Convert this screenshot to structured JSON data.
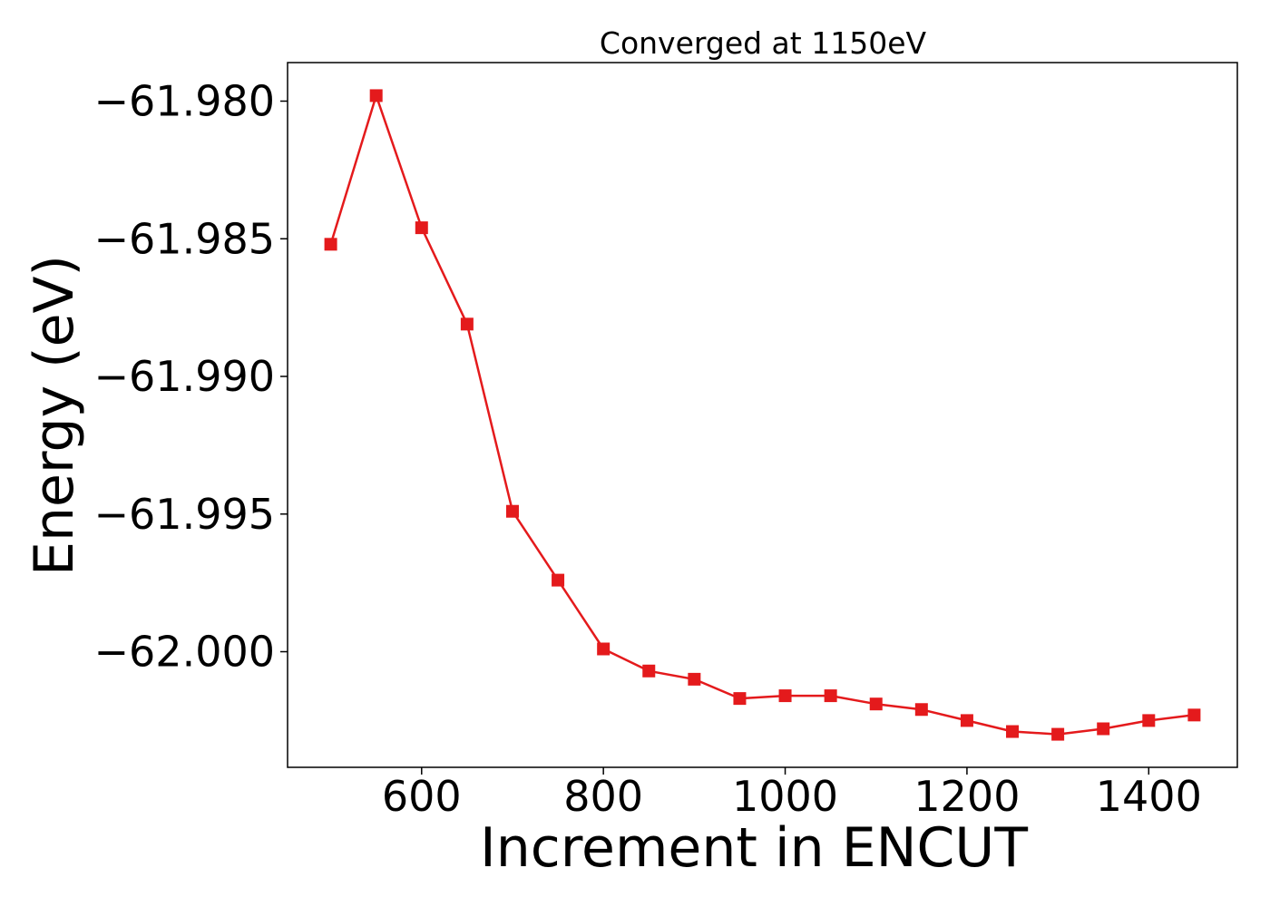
{
  "chart_data": {
    "type": "line",
    "title": "Converged at 1150eV",
    "xlabel": "Increment in ENCUT",
    "ylabel": "Energy (eV)",
    "xlim": [
      452.5,
      1497.5
    ],
    "ylim": [
      -62.0042,
      -61.9786
    ],
    "xticks": [
      600,
      800,
      1000,
      1200,
      1400
    ],
    "xtick_labels": [
      "600",
      "800",
      "1000",
      "1200",
      "1400"
    ],
    "yticks": [
      -61.98,
      -61.985,
      -61.99,
      -61.995,
      -62.0
    ],
    "ytick_labels": [
      "−61.980",
      "−61.985",
      "−61.990",
      "−61.995",
      "−62.000"
    ],
    "grid": false,
    "series": [
      {
        "color": "#e41a1c",
        "marker": "square",
        "x": [
          500,
          550,
          600,
          650,
          700,
          750,
          800,
          850,
          900,
          950,
          1000,
          1050,
          1100,
          1150,
          1200,
          1250,
          1300,
          1350,
          1400,
          1450
        ],
        "y": [
          -61.9852,
          -61.9798,
          -61.9846,
          -61.9881,
          -61.9949,
          -61.9974,
          -61.9999,
          -62.0007,
          -62.001,
          -62.0017,
          -62.0016,
          -62.0016,
          -62.0019,
          -62.0021,
          -62.0025,
          -62.0029,
          -62.003,
          -62.0028,
          -62.0025,
          -62.0023
        ]
      }
    ]
  }
}
